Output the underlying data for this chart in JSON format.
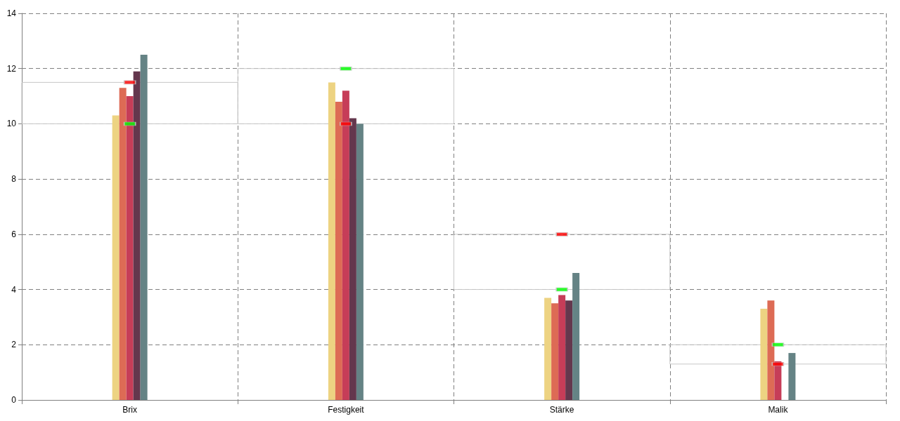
{
  "chart_data": {
    "type": "bar",
    "categories": [
      "Brix",
      "Festigkeit",
      "Stärke",
      "Malik"
    ],
    "series": [
      {
        "color": "#edd382",
        "values": [
          10.3,
          11.5,
          3.7,
          3.3
        ]
      },
      {
        "color": "#dd6b55",
        "values": [
          11.3,
          10.8,
          3.5,
          3.6
        ]
      },
      {
        "color": "#c63d58",
        "values": [
          11.0,
          11.2,
          3.8,
          1.4
        ]
      },
      {
        "color": "#64374d",
        "values": [
          11.9,
          10.2,
          3.6,
          null
        ]
      },
      {
        "color": "#658385",
        "values": [
          12.5,
          10.0,
          4.6,
          1.7
        ]
      },
      {
        "type": "scatter",
        "marker": "square",
        "color": "#ff0000",
        "x": [
          "Brix",
          "Festigkeit",
          "Stärke",
          "Malik"
        ],
        "values": [
          11.5,
          10,
          6,
          1.3
        ]
      },
      {
        "type": "scatter",
        "marker": "square",
        "color": "#00ff00",
        "x": [
          "Brix",
          "Festigkeit",
          "Stärke",
          "Malik"
        ],
        "values": [
          10,
          12,
          4,
          2
        ]
      }
    ],
    "ylim": [
      0,
      14
    ],
    "yticks": [
      0,
      2,
      4,
      6,
      8,
      10,
      12,
      14
    ],
    "grid": true
  }
}
